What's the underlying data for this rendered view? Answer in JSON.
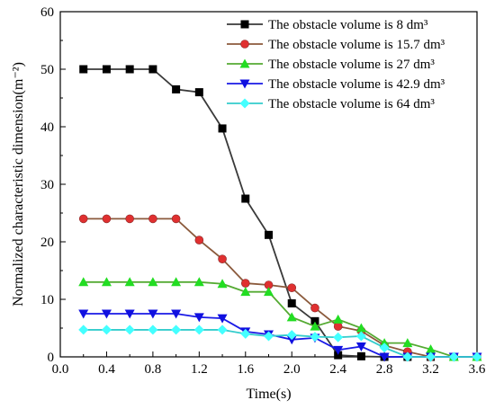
{
  "chart_data": {
    "type": "line",
    "xlabel": "Time(s)",
    "ylabel": "Normalized characteristic dimension(m⁻²)",
    "xlim": [
      0.0,
      3.6
    ],
    "ylim": [
      0,
      60
    ],
    "xticks": [
      "0.0",
      "0.4",
      "0.8",
      "1.2",
      "1.6",
      "2.0",
      "2.4",
      "2.8",
      "3.2",
      "3.6"
    ],
    "yticks": [
      "0",
      "10",
      "20",
      "30",
      "40",
      "50",
      "60"
    ],
    "grid": false,
    "legend_position": "top-right",
    "series": [
      {
        "name": "The obstacle volume is 8 dm³",
        "color": "#3a3a3a",
        "marker": "square",
        "x": [
          0.2,
          0.4,
          0.6,
          0.8,
          1.0,
          1.2,
          1.4,
          1.6,
          1.8,
          2.0,
          2.2,
          2.4,
          2.6,
          2.8,
          3.0,
          3.2,
          3.4,
          3.6
        ],
        "y": [
          50.0,
          50.0,
          50.0,
          50.0,
          46.5,
          46.0,
          39.7,
          27.5,
          21.2,
          9.3,
          6.2,
          0.3,
          0.1,
          0,
          0,
          0,
          0,
          0
        ]
      },
      {
        "name": "The obstacle volume is 15.7 dm³",
        "color": "#8b5a3c",
        "marker": "circle",
        "x": [
          0.2,
          0.4,
          0.6,
          0.8,
          1.0,
          1.2,
          1.4,
          1.6,
          1.8,
          2.0,
          2.2,
          2.4,
          2.6,
          2.8,
          3.0,
          3.2,
          3.4,
          3.6
        ],
        "y": [
          24.0,
          24.0,
          24.0,
          24.0,
          24.0,
          20.3,
          17.0,
          12.8,
          12.5,
          12.0,
          8.5,
          5.3,
          4.5,
          2.0,
          0.9,
          0,
          0,
          0
        ]
      },
      {
        "name": "The obstacle volume is 27 dm³",
        "color": "#55aa33",
        "marker": "triangle-up",
        "x": [
          0.2,
          0.4,
          0.6,
          0.8,
          1.0,
          1.2,
          1.4,
          1.6,
          1.8,
          2.0,
          2.2,
          2.4,
          2.6,
          2.8,
          3.0,
          3.2,
          3.4,
          3.6
        ],
        "y": [
          13.0,
          13.0,
          13.0,
          13.0,
          13.0,
          13.0,
          12.7,
          11.3,
          11.3,
          6.9,
          5.3,
          6.5,
          5.0,
          2.4,
          2.4,
          1.3,
          0,
          0
        ]
      },
      {
        "name": "The obstacle volume is 42.9 dm³",
        "color": "#1a1ae6",
        "marker": "triangle-down",
        "x": [
          0.2,
          0.4,
          0.6,
          0.8,
          1.0,
          1.2,
          1.4,
          1.6,
          1.8,
          2.0,
          2.2,
          2.4,
          2.6,
          2.8,
          3.0,
          3.2,
          3.4,
          3.6
        ],
        "y": [
          7.5,
          7.5,
          7.5,
          7.5,
          7.5,
          6.9,
          6.7,
          4.4,
          3.9,
          3.0,
          3.3,
          1.2,
          1.8,
          0,
          0,
          0,
          0,
          0
        ]
      },
      {
        "name": "The obstacle volume is 64 dm³",
        "color": "#33cccc",
        "marker": "diamond",
        "x": [
          0.2,
          0.4,
          0.6,
          0.8,
          1.0,
          1.2,
          1.4,
          1.6,
          1.8,
          2.0,
          2.2,
          2.4,
          2.6,
          2.8,
          3.0,
          3.2,
          3.4,
          3.6
        ],
        "y": [
          4.7,
          4.7,
          4.7,
          4.7,
          4.7,
          4.7,
          4.7,
          4.0,
          3.6,
          3.8,
          3.5,
          3.4,
          3.6,
          1.6,
          0,
          0,
          0,
          0
        ]
      }
    ]
  }
}
